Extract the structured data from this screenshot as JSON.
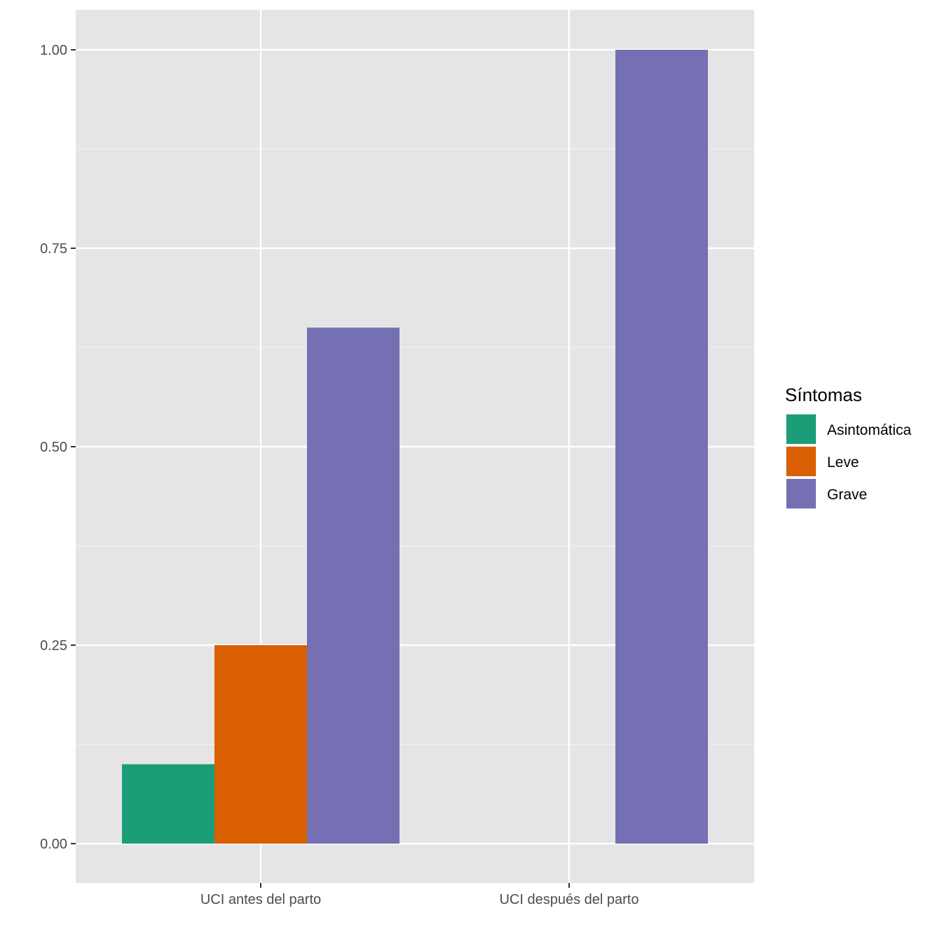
{
  "chart_data": {
    "type": "bar",
    "categories": [
      "UCI antes del parto",
      "UCI después del parto"
    ],
    "series": [
      {
        "name": "Asintomática",
        "values": [
          0.1,
          0.0
        ],
        "color": "#1B9E77"
      },
      {
        "name": "Leve",
        "values": [
          0.25,
          0.0
        ],
        "color": "#D95F02"
      },
      {
        "name": "Grave",
        "values": [
          0.65,
          1.0
        ],
        "color": "#7570B3"
      }
    ],
    "y_ticks": [
      "0.00",
      "0.25",
      "0.50",
      "0.75",
      "1.00"
    ],
    "ylim": [
      -0.05,
      1.05
    ],
    "grid": true,
    "legend": {
      "title": "Síntomas",
      "position": "right"
    },
    "title": "",
    "xlabel": "",
    "ylabel": ""
  }
}
